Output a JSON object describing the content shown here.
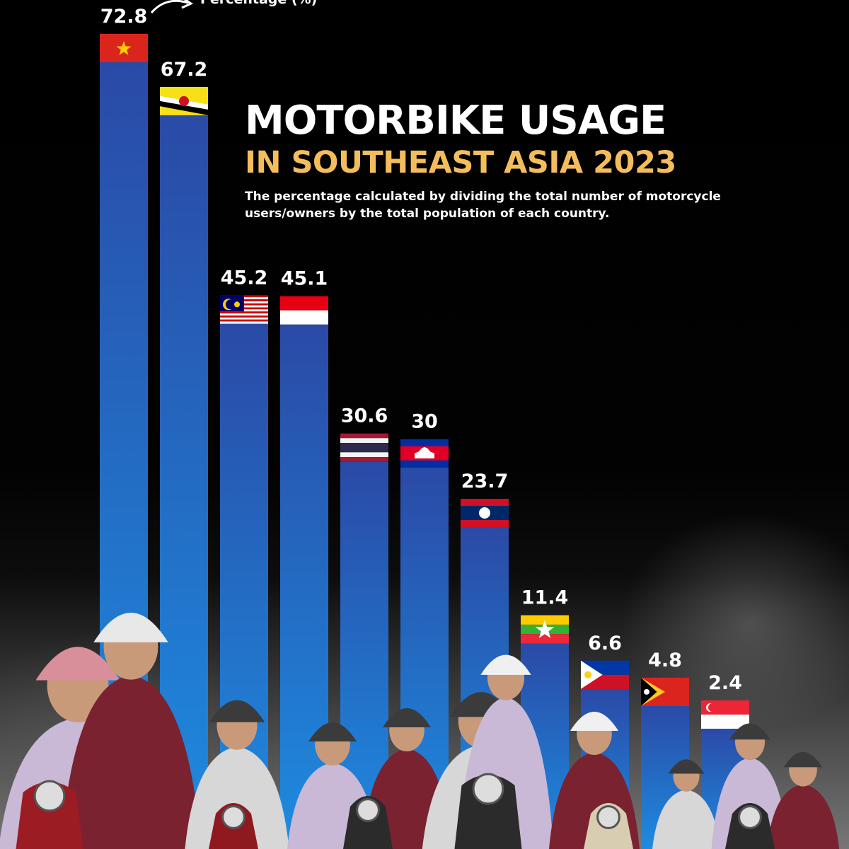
{
  "title": {
    "line1": "MOTORBIKE USAGE",
    "line2": "IN SOUTHEAST ASIA 2023",
    "subtitle": "The percentage calculated by dividing the total number of motorcycle users/owners by the total population of each country."
  },
  "axis_note": "Percentage (%)",
  "colors": {
    "bar_top": "#2a4aa6",
    "bar_bottom": "#1d8ce0",
    "title_accent": "#f4bd5c",
    "label": "#ffffff"
  },
  "chart_data": {
    "type": "bar",
    "categories": [
      "Vietnam",
      "Brunei",
      "Malaysia",
      "Indonesia",
      "Thailand",
      "Cambodia",
      "Laos",
      "Myanmar",
      "Philippines",
      "Timor-Leste",
      "Singapore"
    ],
    "values": [
      72.8,
      67.2,
      45.2,
      45.1,
      30.6,
      30,
      23.7,
      11.4,
      6.6,
      4.8,
      2.4
    ],
    "value_labels": [
      "72.8",
      "67.2",
      "45.2",
      "45.1",
      "30.6",
      "30",
      "23.7",
      "11.4",
      "6.6",
      "4.8",
      "2.4"
    ],
    "category_icons": [
      "flag-vietnam-icon",
      "flag-brunei-icon",
      "flag-malaysia-icon",
      "flag-indonesia-icon",
      "flag-thailand-icon",
      "flag-cambodia-icon",
      "flag-laos-icon",
      "flag-myanmar-icon",
      "flag-philippines-icon",
      "flag-timor-leste-icon",
      "flag-singapore-icon"
    ],
    "ylabel": "Percentage (%)",
    "grid": false,
    "legend": "none"
  }
}
